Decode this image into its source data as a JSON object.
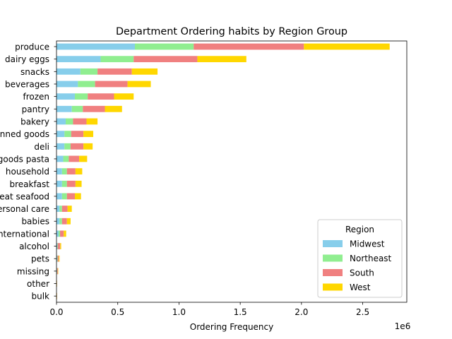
{
  "chart_data": {
    "type": "bar",
    "orientation": "horizontal",
    "stacked": true,
    "title": "Department Ordering habits by Region Group",
    "xlabel": "Ordering Frequency",
    "ylabel": "",
    "offset_text": "1e6",
    "xlim": [
      0,
      2860000
    ],
    "xticks": [
      0,
      500000,
      1000000,
      1500000,
      2000000,
      2500000
    ],
    "xtick_labels": [
      "0.0",
      "0.5",
      "1.0",
      "1.5",
      "2.0",
      "2.5"
    ],
    "grid": false,
    "legend": {
      "title": "Region",
      "position": "lower-right"
    },
    "categories": [
      "produce",
      "dairy eggs",
      "snacks",
      "beverages",
      "frozen",
      "pantry",
      "bakery",
      "canned goods",
      "deli",
      "dry goods pasta",
      "household",
      "breakfast",
      "meat seafood",
      "personal care",
      "babies",
      "international",
      "alcohol",
      "pets",
      "missing",
      "other",
      "bulk"
    ],
    "series": [
      {
        "name": "Midwest",
        "color": "#87CEEB",
        "values": [
          640000,
          360000,
          195000,
          175000,
          150000,
          125000,
          75000,
          65000,
          65000,
          55000,
          45000,
          45000,
          45000,
          25000,
          25000,
          17000,
          6000,
          5000,
          3000,
          1000,
          1000
        ]
      },
      {
        "name": "Northeast",
        "color": "#90EE90",
        "values": [
          480000,
          270000,
          140000,
          140000,
          105000,
          90000,
          60000,
          55000,
          50000,
          45000,
          40000,
          40000,
          40000,
          20000,
          20000,
          12000,
          4000,
          4000,
          2000,
          1000,
          1000
        ]
      },
      {
        "name": "South",
        "color": "#F08080",
        "values": [
          900000,
          520000,
          280000,
          265000,
          215000,
          180000,
          110000,
          100000,
          105000,
          85000,
          70000,
          70000,
          65000,
          45000,
          40000,
          30000,
          20000,
          10000,
          6000,
          2000,
          2000
        ]
      },
      {
        "name": "West",
        "color": "#FFD700",
        "values": [
          700000,
          400000,
          210000,
          190000,
          160000,
          140000,
          90000,
          80000,
          75000,
          65000,
          55000,
          50000,
          50000,
          35000,
          30000,
          20000,
          8000,
          6000,
          3000,
          1000,
          1000
        ]
      }
    ]
  }
}
